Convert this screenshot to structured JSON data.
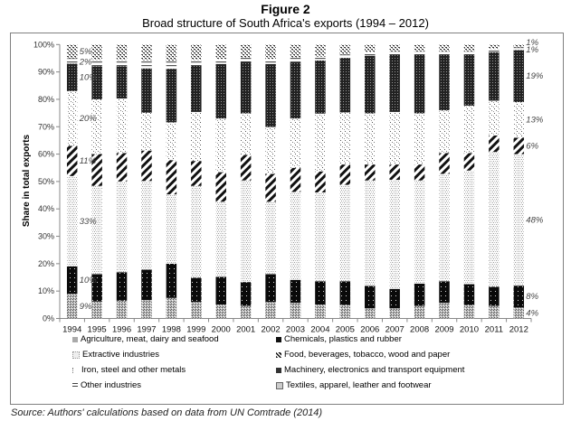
{
  "header": {
    "figure_label": "Figure 2",
    "title": "Broad structure of South Africa's exports (1994 – 2012)"
  },
  "source": "Source: Authors' calculations based on data from UN Comtrade (2014)",
  "chart_data": {
    "type": "bar",
    "stacked": true,
    "percent_stacked": true,
    "title": "Broad structure of South Africa's exports (1994 – 2012)",
    "xlabel": "",
    "ylabel": "Share in total exports",
    "ylim": [
      0,
      100
    ],
    "yticks": [
      "0%",
      "10%",
      "20%",
      "30%",
      "40%",
      "50%",
      "60%",
      "70%",
      "80%",
      "90%",
      "100%"
    ],
    "grid": false,
    "legend_position": "bottom",
    "categories": [
      "1994",
      "1995",
      "1996",
      "1997",
      "1998",
      "1999",
      "2000",
      "2001",
      "2002",
      "2003",
      "2004",
      "2005",
      "2006",
      "2007",
      "2008",
      "2009",
      "2010",
      "2011",
      "2012"
    ],
    "series": [
      {
        "name": "Agriculture, meat, dairy and seafood",
        "pattern": "dense-check",
        "values": [
          9,
          6.2,
          6.5,
          6.7,
          7.5,
          6.0,
          5.1,
          4.6,
          6.0,
          5.7,
          5.1,
          4.9,
          3.7,
          3.7,
          4.6,
          5.7,
          4.9,
          4.6,
          4
        ]
      },
      {
        "name": "Chemicals, plastics and rubber",
        "pattern": "black-dots",
        "values": [
          10,
          10.0,
          10.4,
          11.1,
          12.5,
          8.9,
          10.1,
          8.7,
          10.2,
          8.4,
          8.5,
          8.7,
          8.2,
          7.1,
          8.1,
          7.9,
          7.6,
          7.0,
          8
        ]
      },
      {
        "name": "Extractive industries",
        "pattern": "light-dots",
        "values": [
          33,
          32.2,
          33.1,
          32.4,
          25.3,
          33.5,
          27.4,
          37.1,
          26.4,
          32.1,
          32.4,
          35.2,
          38.5,
          39.8,
          37.7,
          39.2,
          41.5,
          49.2,
          48
        ]
      },
      {
        "name": "Food, beverages, tobacco, wood and paper",
        "pattern": "diagonal-stripes",
        "values": [
          11,
          11.6,
          10.4,
          11.1,
          12.5,
          9.1,
          10.8,
          9.3,
          10.2,
          8.8,
          7.7,
          7.4,
          5.8,
          5.6,
          5.8,
          7.6,
          6.4,
          6.0,
          6
        ]
      },
      {
        "name": "Iron, steel and other metals",
        "pattern": "sparse-dots",
        "values": [
          20,
          20.0,
          19.9,
          13.8,
          13.8,
          17.9,
          19.6,
          15.2,
          17.1,
          18.0,
          21.1,
          19.0,
          18.7,
          19.2,
          18.7,
          15.6,
          17.3,
          12.7,
          13
        ]
      },
      {
        "name": "Machinery, electronics and transport equipment",
        "pattern": "dark-check",
        "values": [
          10,
          12.1,
          11.8,
          16.2,
          19.5,
          17.0,
          19.9,
          18.9,
          23.0,
          20.6,
          19.4,
          19.9,
          21.0,
          20.9,
          21.4,
          20.3,
          18.6,
          17.7,
          19
        ]
      },
      {
        "name": "Other industries",
        "pattern": "horizontal-lines",
        "values": [
          2,
          2.3,
          2.3,
          3.0,
          3.0,
          2.0,
          1.8,
          1.4,
          1.8,
          1.6,
          1.4,
          1.3,
          1.3,
          1.2,
          1.2,
          1.2,
          1.2,
          1.2,
          1
        ]
      },
      {
        "name": "Textiles, apparel, leather and footwear",
        "pattern": "mottled",
        "values": [
          5,
          5.6,
          5.6,
          5.7,
          5.9,
          5.6,
          5.3,
          4.8,
          5.3,
          4.8,
          4.4,
          3.6,
          2.8,
          2.5,
          2.5,
          2.5,
          2.5,
          1.6,
          1
        ]
      }
    ],
    "annotations": {
      "first_year": {
        "year": "1994",
        "labels": [
          "9%",
          "10%",
          "33%",
          "11%",
          "20%",
          "10%",
          "2%",
          "5%"
        ]
      },
      "last_year": {
        "year": "2012",
        "labels": [
          "4%",
          "8%",
          "48%",
          "6%",
          "13%",
          "19%",
          "1%",
          "1%"
        ]
      }
    }
  },
  "legend": {
    "left": [
      "Agriculture, meat, dairy and seafood",
      "Extractive industries",
      "Iron, steel and other metals",
      "Other industries"
    ],
    "right": [
      "Chemicals, plastics and rubber",
      "Food, beverages, tobacco, wood and paper",
      "Machinery, electronics and transport equipment",
      "Textiles, apparel, leather and footwear"
    ]
  }
}
